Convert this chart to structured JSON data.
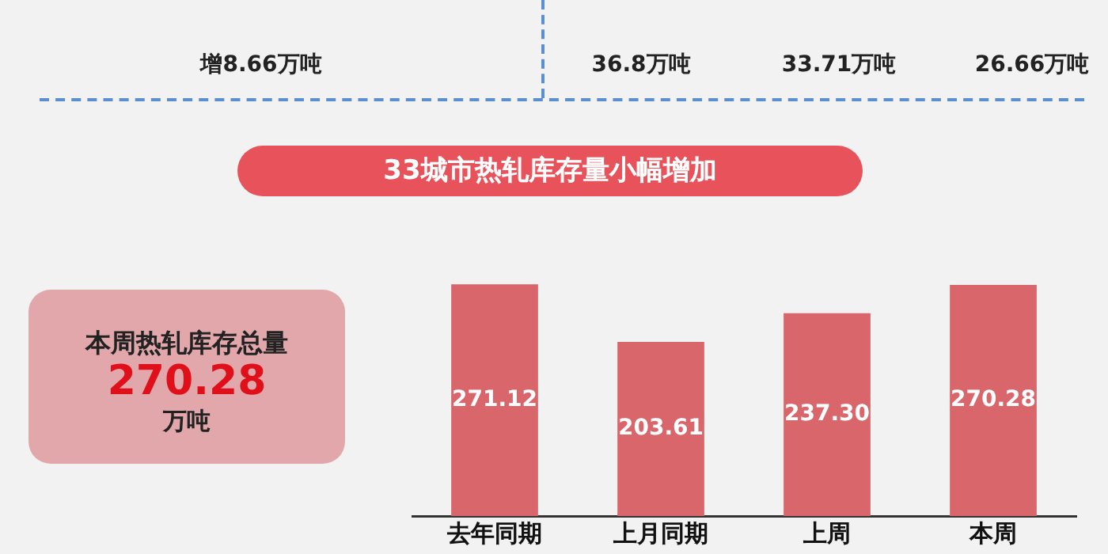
{
  "chart_data": {
    "type": "bar",
    "title": "33城市热轧库存量小幅增加",
    "categories": [
      "去年同期",
      "上月同期",
      "上周",
      "本周"
    ],
    "values": [
      271.12,
      203.61,
      237.3,
      270.28
    ],
    "value_labels": [
      "271.12",
      "203.61",
      "237.30",
      "270.28"
    ],
    "color": "#d9666a",
    "tick_labels": "x",
    "grid": false,
    "legend": false,
    "annotations": [
      "增8.66万吨",
      "36.8万吨",
      "33.71万吨",
      "26.66万吨",
      "本周热轧库存总量",
      "270.28",
      "万吨"
    ]
  }
}
